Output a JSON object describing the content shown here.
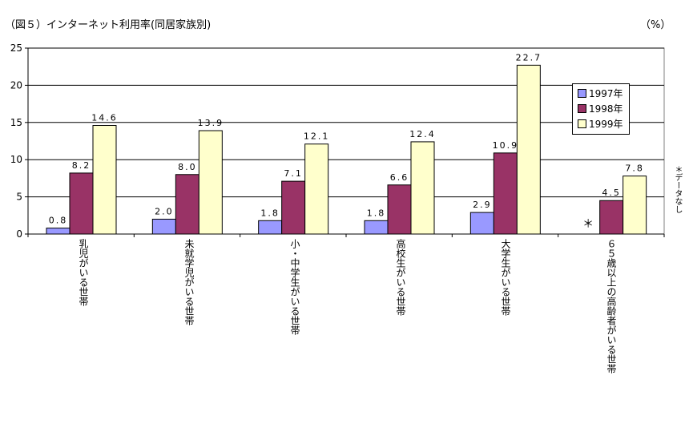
{
  "title": "（図５）インターネット利用率(同居家族別)",
  "unit": "（%）",
  "note": "＊データなし",
  "legend": [
    "1997年",
    "1998年",
    "1999年"
  ],
  "colors": {
    "s1997": "#9999ff",
    "s1998": "#993366",
    "s1999": "#ffffcc"
  },
  "chart_data": {
    "type": "bar",
    "title": "（図５）インターネット利用率(同居家族別)",
    "ylabel": "（%）",
    "ylim": [
      0,
      25
    ],
    "yticks": [
      0,
      5,
      10,
      15,
      20,
      25
    ],
    "grid": true,
    "legend_position": "right",
    "categories": [
      "乳児がいる世帯",
      "未就学児がいる世帯",
      "小・中学生がいる世帯",
      "高校生がいる世帯",
      "大学生がいる世帯",
      "６５歳以上の高齢者がいる世帯"
    ],
    "series": [
      {
        "name": "1997年",
        "values": [
          0.8,
          2.0,
          1.8,
          1.8,
          2.9,
          null
        ],
        "labels": [
          "0.8",
          "2.0",
          "1.8",
          "1.8",
          "2.9",
          "＊"
        ]
      },
      {
        "name": "1998年",
        "values": [
          8.2,
          8.0,
          7.1,
          6.6,
          10.9,
          4.5
        ],
        "labels": [
          "8.2",
          "8.0",
          "7.1",
          "6.6",
          "10.9",
          "4.5"
        ]
      },
      {
        "name": "1999年",
        "values": [
          14.6,
          13.9,
          12.1,
          12.4,
          22.7,
          7.8
        ],
        "labels": [
          "14.6",
          "13.9",
          "12.1",
          "12.4",
          "22.7",
          "7.8"
        ]
      }
    ]
  }
}
